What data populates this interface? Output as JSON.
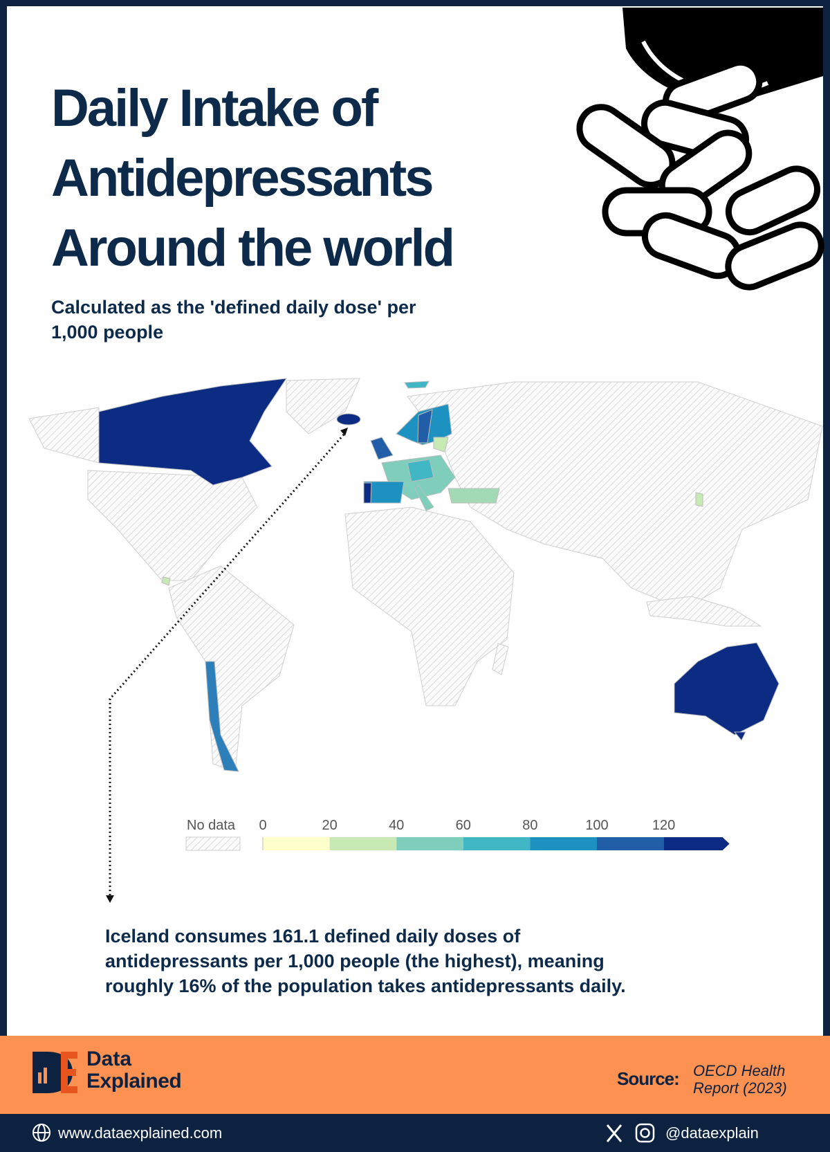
{
  "header": {
    "title_lines": [
      "Daily Intake of",
      "Antidepressants",
      "Around the world"
    ],
    "subtitle_lines": [
      "Calculated as the 'defined daily dose' per",
      "1,000 people"
    ]
  },
  "legend": {
    "no_data_label": "No data",
    "ticks": [
      0,
      20,
      40,
      60,
      80,
      100,
      120
    ],
    "colors": [
      "#ffffcc",
      "#c7e9b4",
      "#7fcdbb",
      "#41b6c4",
      "#1d91c0",
      "#225ea8",
      "#0c2c84"
    ]
  },
  "annotation_lines": [
    "Iceland consumes 161.1 defined daily doses of",
    "antidepressants per 1,000 people (the highest), meaning",
    "roughly 16% of the population takes antidepressants daily."
  ],
  "footer": {
    "brand_lines": [
      "Data",
      "Explained"
    ],
    "source_label": "Source:",
    "source_lines": [
      "OECD  Health",
      "Report (2023)"
    ],
    "website": "www.dataexplained.com",
    "handle": "@dataexplain"
  }
}
